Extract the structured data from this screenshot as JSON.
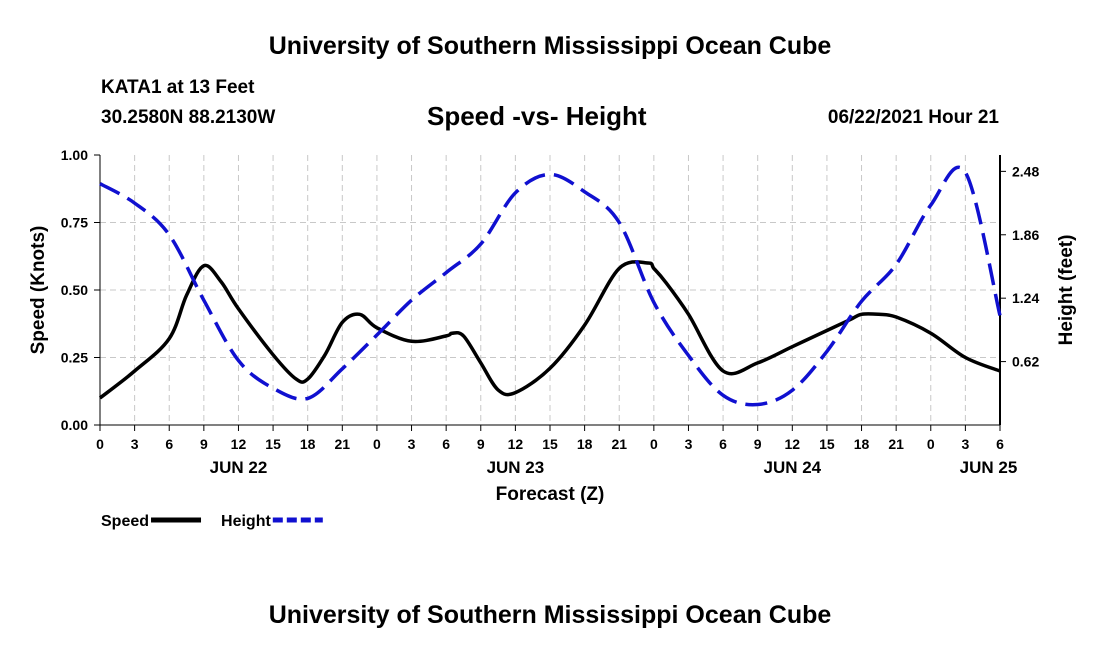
{
  "header": {
    "title": "University of Southern Mississippi Ocean Cube",
    "station": "KATA1 at 13 Feet",
    "coords": "30.2580N  88.2130W",
    "subtitle": "Speed -vs- Height",
    "timestamp": "06/22/2021 Hour 21"
  },
  "footer": {
    "title": "University of Southern Mississippi Ocean Cube"
  },
  "chart_data": {
    "type": "line",
    "title": "Speed -vs- Height",
    "xlabel": "Forecast (Z)",
    "ylabel": "Speed (Knots)",
    "y2label": "Height (feet)",
    "x_range": [
      0,
      78
    ],
    "ylim": [
      0,
      1
    ],
    "y2lim": [
      0,
      2.64
    ],
    "x_ticks": [
      0,
      3,
      6,
      9,
      12,
      15,
      18,
      21,
      24,
      27,
      30,
      33,
      36,
      39,
      42,
      45,
      48,
      51,
      54,
      57,
      60,
      63,
      66,
      69,
      72,
      75,
      78
    ],
    "x_tick_labels": [
      "0",
      "3",
      "6",
      "9",
      "12",
      "15",
      "18",
      "21",
      "0",
      "3",
      "6",
      "9",
      "12",
      "15",
      "18",
      "21",
      "0",
      "3",
      "6",
      "9",
      "12",
      "15",
      "18",
      "21",
      "0",
      "3",
      "6"
    ],
    "date_labels": [
      {
        "label": "JUN 22",
        "x": 12
      },
      {
        "label": "JUN 23",
        "x": 36
      },
      {
        "label": "JUN 24",
        "x": 60
      },
      {
        "label": "JUN 25",
        "x": 77
      }
    ],
    "y_ticks": [
      0,
      0.25,
      0.5,
      0.75,
      1.0
    ],
    "y_tick_labels": [
      "0.00",
      "0.25",
      "0.50",
      "0.75",
      "1.00"
    ],
    "y2_ticks": [
      0.62,
      1.24,
      1.86,
      2.48
    ],
    "y2_tick_labels": [
      "0.62",
      "1.24",
      "1.86",
      "2.48"
    ],
    "grid": true,
    "legend": {
      "position": "bottom-left",
      "items": [
        {
          "label": "Speed",
          "color": "#000000",
          "style": "solid"
        },
        {
          "label": "Height",
          "color": "#1010d0",
          "style": "dashed"
        }
      ]
    },
    "series": [
      {
        "name": "Speed",
        "axis": "left",
        "color": "#000000",
        "style": "solid",
        "x": [
          0,
          3,
          6,
          7.5,
          9,
          10.5,
          12,
          15,
          17,
          18,
          19.5,
          21,
          22.5,
          24,
          27,
          30,
          30.5,
          31.5,
          33,
          34.5,
          36,
          39,
          42,
          45,
          47.5,
          48,
          49,
          51,
          54,
          57,
          60,
          63,
          65,
          66,
          67.5,
          69,
          72,
          75,
          78
        ],
        "y": [
          0.1,
          0.2,
          0.32,
          0.48,
          0.59,
          0.53,
          0.43,
          0.26,
          0.17,
          0.17,
          0.26,
          0.38,
          0.41,
          0.36,
          0.31,
          0.33,
          0.34,
          0.33,
          0.23,
          0.13,
          0.12,
          0.21,
          0.37,
          0.58,
          0.6,
          0.58,
          0.53,
          0.41,
          0.2,
          0.23,
          0.29,
          0.35,
          0.39,
          0.41,
          0.41,
          0.4,
          0.34,
          0.25,
          0.2
        ]
      },
      {
        "name": "Height",
        "axis": "right",
        "color": "#1010d0",
        "style": "dashed",
        "x": [
          0,
          3,
          6,
          9,
          12,
          15,
          18,
          21,
          24,
          27,
          30,
          33,
          36,
          39,
          42,
          45,
          48,
          51,
          54,
          57,
          60,
          63,
          66,
          69,
          72,
          75,
          78
        ],
        "y": [
          2.36,
          2.17,
          1.86,
          1.22,
          0.63,
          0.36,
          0.26,
          0.55,
          0.88,
          1.22,
          1.49,
          1.77,
          2.27,
          2.45,
          2.28,
          1.98,
          1.2,
          0.68,
          0.29,
          0.2,
          0.34,
          0.72,
          1.21,
          1.57,
          2.15,
          2.47,
          1.07
        ]
      }
    ]
  }
}
